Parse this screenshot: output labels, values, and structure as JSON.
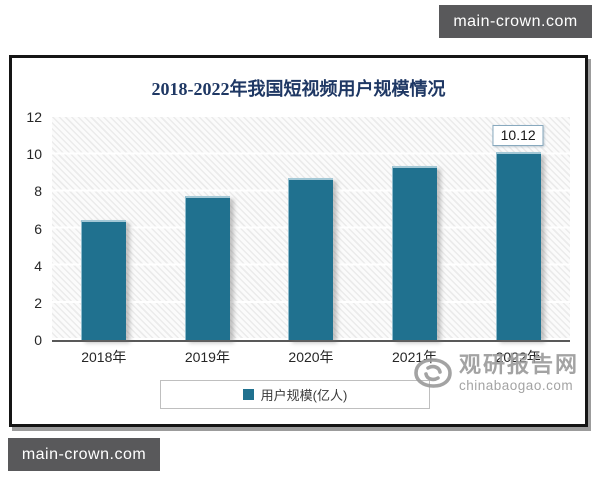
{
  "watermarks": {
    "top_right": "main-crown.com",
    "bottom_left": "main-crown.com"
  },
  "brand": {
    "name": "观研报告网",
    "domain": "chinabaogao.com"
  },
  "chart_data": {
    "type": "bar",
    "title": "2018-2022年我国短视频用户规模情况",
    "categories": [
      "2018年",
      "2019年",
      "2020年",
      "2021年",
      "2022年"
    ],
    "series": [
      {
        "name": "用户规模(亿人)",
        "values": [
          6.48,
          7.73,
          8.73,
          9.34,
          10.12
        ]
      }
    ],
    "shown_data_labels": [
      {
        "category": "2022年",
        "label": "10.12"
      }
    ],
    "legend": {
      "position": "bottom",
      "entries": [
        "用户规模(亿人)"
      ]
    },
    "xlabel": "",
    "ylabel": "",
    "ylim": [
      0,
      12
    ],
    "yticks": [
      0,
      2,
      4,
      6,
      8,
      10,
      12
    ],
    "grid": true,
    "hatched_background": true,
    "bar_color": "#20718f",
    "title_color": "#1f3864"
  }
}
